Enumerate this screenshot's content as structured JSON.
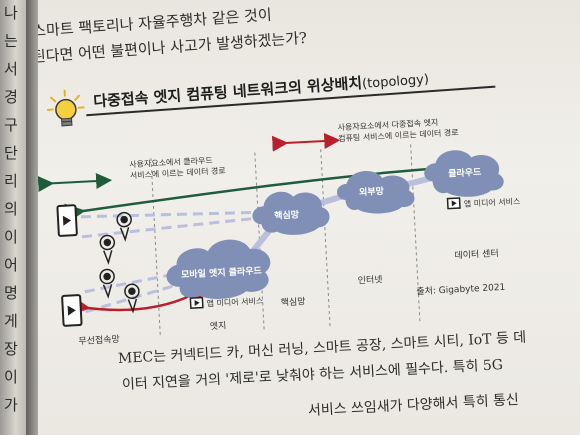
{
  "left_page": {
    "glyphs": [
      "나",
      "는",
      "서",
      "경",
      "구",
      "단",
      "리",
      "의",
      "이",
      "어",
      "명",
      "게",
      "장",
      "이",
      "가"
    ]
  },
  "text": {
    "intro_line1": "스마트 팩토리나 자율주행차 같은 것이",
    "intro_line2": "된다면 어떤 불편이나 사고가 발생하겠는가?",
    "para_line1": "MEC는 커넥티드 카, 머신 러닝, 스마트 공장, 스마트 시티, IoT 등 데",
    "para_line2": "이터 지연을 거의 '제로'로 낮춰야 하는 서비스에 필수다. 특히 5G",
    "para_line3": "서비스 쓰임새가 다양해서 특히 통신"
  },
  "diagram": {
    "title": "다중접속 엣지 컴퓨팅 네트워크의 위상배치",
    "title_en": "(topology)",
    "legend": {
      "green_line1": "사용자요소에서 클라우드",
      "green_line2": "서비스에 이르는 데이터 경로",
      "red_line1": "사용자요소에서 다중접속 엣지",
      "red_line2": "컴퓨팅 서비스에 이르는 데이터 경로"
    },
    "clouds": {
      "mobile_edge": "모바일 엣지 클라우드",
      "core": "핵심망",
      "external": "외부망",
      "cloud": "클라우드"
    },
    "app_media_service": "앱 미디어 서비스",
    "zones": {
      "wireless": "무선접속망",
      "edge": "엣지",
      "core": "핵심망",
      "internet": "인터넷",
      "datacenter": "데이터 센터"
    },
    "source": "출처: Gigabyte 2021"
  },
  "colors": {
    "green_path": "#1f5c3c",
    "red_path": "#b8202e",
    "cloud_fill": "#7f8fb6",
    "dashed_line": "#b9bfdc"
  }
}
